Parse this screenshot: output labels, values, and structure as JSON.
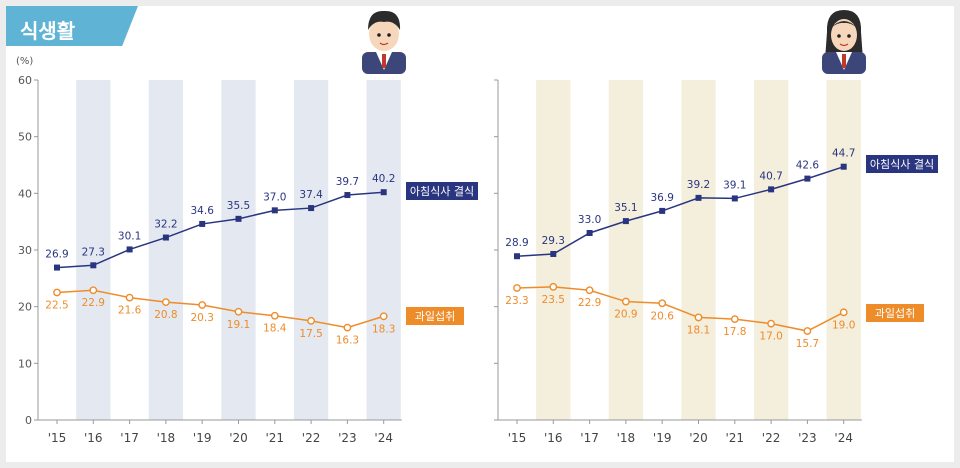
{
  "section_title": "식생활",
  "unit_label": "(%)",
  "colors": {
    "breakfast": "#2a3580",
    "fruit": "#ee8c2a",
    "band_boys": "#e4e9f1",
    "band_girls": "#f4eedc",
    "title_bg": "#5fb4d6"
  },
  "icons": {
    "boys": "boy-student-icon",
    "girls": "girl-student-icon"
  },
  "chart_data": [
    {
      "type": "line",
      "categories": [
        "'15",
        "'16",
        "'17",
        "'18",
        "'19",
        "'20",
        "'21",
        "'22",
        "'23",
        "'24"
      ],
      "ylim": [
        0,
        60
      ],
      "yticks": [
        "0",
        "10",
        "20",
        "30",
        "40",
        "50",
        "60"
      ],
      "series": [
        {
          "name": "아침식사 결식",
          "values": [
            26.9,
            27.3,
            30.1,
            32.2,
            34.6,
            35.5,
            37.0,
            37.4,
            39.7,
            40.2
          ],
          "labels": [
            "26.9",
            "27.3",
            "30.1",
            "32.2",
            "34.6",
            "35.5",
            "37.0",
            "37.4",
            "39.7",
            "40.2"
          ]
        },
        {
          "name": "과일섭취",
          "values": [
            22.5,
            22.9,
            21.6,
            20.8,
            20.3,
            19.1,
            18.4,
            17.5,
            16.3,
            18.3
          ],
          "labels": [
            "22.5",
            "22.9",
            "21.6",
            "20.8",
            "20.3",
            "19.1",
            "18.4",
            "17.5",
            "16.3",
            "18.3"
          ]
        }
      ]
    },
    {
      "type": "line",
      "categories": [
        "'15",
        "'16",
        "'17",
        "'18",
        "'19",
        "'20",
        "'21",
        "'22",
        "'23",
        "'24"
      ],
      "ylim": [
        0,
        60
      ],
      "yticks": [
        "0",
        "10",
        "20",
        "30",
        "40",
        "50",
        "60"
      ],
      "series": [
        {
          "name": "아침식사 결식",
          "values": [
            28.9,
            29.3,
            33.0,
            35.1,
            36.9,
            39.2,
            39.1,
            40.7,
            42.6,
            44.7
          ],
          "labels": [
            "28.9",
            "29.3",
            "33.0",
            "35.1",
            "36.9",
            "39.2",
            "39.1",
            "40.7",
            "42.6",
            "44.7"
          ]
        },
        {
          "name": "과일섭취",
          "values": [
            23.3,
            23.5,
            22.9,
            20.9,
            20.6,
            18.1,
            17.8,
            17.0,
            15.7,
            19.0
          ],
          "labels": [
            "23.3",
            "23.5",
            "22.9",
            "20.9",
            "20.6",
            "18.1",
            "17.8",
            "17.0",
            "15.7",
            "19.0"
          ]
        }
      ]
    }
  ]
}
